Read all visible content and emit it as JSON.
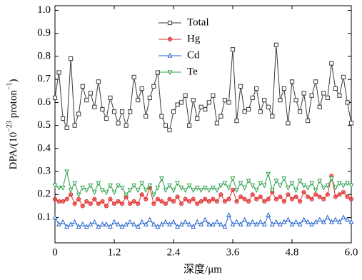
{
  "chart_data": {
    "type": "line",
    "xlabel": "深度/μm",
    "ylabel_parts": [
      "DPA/(10",
      "−23",
      " proton",
      "−1",
      ")"
    ],
    "x": [
      0,
      0.08,
      0.16,
      0.24,
      0.32,
      0.4,
      0.48,
      0.56,
      0.64,
      0.72,
      0.8,
      0.88,
      0.96,
      1.04,
      1.12,
      1.2,
      1.28,
      1.36,
      1.44,
      1.52,
      1.6,
      1.68,
      1.76,
      1.84,
      1.92,
      2,
      2.08,
      2.16,
      2.24,
      2.32,
      2.4,
      2.48,
      2.56,
      2.64,
      2.72,
      2.8,
      2.88,
      2.96,
      3.04,
      3.12,
      3.2,
      3.28,
      3.36,
      3.44,
      3.52,
      3.6,
      3.68,
      3.76,
      3.84,
      3.92,
      4,
      4.08,
      4.16,
      4.24,
      4.32,
      4.4,
      4.48,
      4.56,
      4.64,
      4.72,
      4.8,
      4.88,
      4.96,
      5.04,
      5.12,
      5.2,
      5.28,
      5.36,
      5.44,
      5.52,
      5.6,
      5.68,
      5.76,
      5.84,
      5.92,
      6
    ],
    "series": [
      {
        "name": "Total",
        "color": "#3a3a3a",
        "marker": "square",
        "values": [
          0.62,
          0.73,
          0.53,
          0.49,
          0.79,
          0.5,
          0.55,
          0.67,
          0.61,
          0.64,
          0.58,
          0.69,
          0.57,
          0.53,
          0.62,
          0.56,
          0.51,
          0.56,
          0.5,
          0.56,
          0.71,
          0.61,
          0.66,
          0.54,
          0.62,
          0.67,
          0.73,
          0.54,
          0.5,
          0.48,
          0.56,
          0.59,
          0.6,
          0.63,
          0.5,
          0.61,
          0.53,
          0.58,
          0.57,
          0.6,
          0.63,
          0.51,
          0.54,
          0.61,
          0.6,
          0.83,
          0.52,
          0.67,
          0.56,
          0.57,
          0.62,
          0.66,
          0.56,
          0.61,
          0.58,
          0.54,
          0.85,
          0.61,
          0.66,
          0.51,
          0.69,
          0.61,
          0.56,
          0.64,
          0.52,
          0.63,
          0.69,
          0.58,
          0.64,
          0.62,
          0.77,
          0.66,
          0.63,
          0.71,
          0.6,
          0.51
        ]
      },
      {
        "name": "Hg",
        "color": "#e03030",
        "marker": "circle",
        "values": [
          0.18,
          0.17,
          0.17,
          0.18,
          0.2,
          0.16,
          0.18,
          0.15,
          0.17,
          0.16,
          0.18,
          0.16,
          0.17,
          0.15,
          0.18,
          0.16,
          0.17,
          0.16,
          0.19,
          0.16,
          0.17,
          0.16,
          0.2,
          0.18,
          0.23,
          0.16,
          0.18,
          0.17,
          0.16,
          0.18,
          0.17,
          0.19,
          0.16,
          0.18,
          0.17,
          0.18,
          0.16,
          0.17,
          0.18,
          0.17,
          0.18,
          0.17,
          0.2,
          0.17,
          0.18,
          0.22,
          0.17,
          0.19,
          0.18,
          0.17,
          0.2,
          0.18,
          0.19,
          0.17,
          0.18,
          0.21,
          0.18,
          0.19,
          0.17,
          0.2,
          0.18,
          0.19,
          0.17,
          0.21,
          0.19,
          0.18,
          0.2,
          0.19,
          0.18,
          0.2,
          0.28,
          0.19,
          0.2,
          0.21,
          0.19,
          0.18
        ]
      },
      {
        "name": "Cd",
        "color": "#1f5fd0",
        "marker": "triangle",
        "values": [
          0.1,
          0.07,
          0.08,
          0.06,
          0.07,
          0.08,
          0.06,
          0.07,
          0.06,
          0.07,
          0.08,
          0.06,
          0.07,
          0.07,
          0.06,
          0.08,
          0.07,
          0.06,
          0.07,
          0.08,
          0.07,
          0.06,
          0.08,
          0.07,
          0.09,
          0.07,
          0.06,
          0.07,
          0.08,
          0.07,
          0.08,
          0.06,
          0.07,
          0.08,
          0.07,
          0.06,
          0.08,
          0.07,
          0.09,
          0.07,
          0.07,
          0.08,
          0.07,
          0.06,
          0.11,
          0.07,
          0.08,
          0.07,
          0.09,
          0.07,
          0.08,
          0.07,
          0.08,
          0.07,
          0.11,
          0.07,
          0.08,
          0.07,
          0.08,
          0.09,
          0.07,
          0.08,
          0.07,
          0.09,
          0.08,
          0.07,
          0.08,
          0.09,
          0.08,
          0.1,
          0.08,
          0.09,
          0.08,
          0.1,
          0.09,
          0.08
        ]
      },
      {
        "name": "Te",
        "color": "#2aa04a",
        "marker": "triangle-down",
        "values": [
          0.24,
          0.23,
          0.23,
          0.3,
          0.22,
          0.25,
          0.2,
          0.23,
          0.22,
          0.24,
          0.21,
          0.25,
          0.22,
          0.21,
          0.24,
          0.21,
          0.24,
          0.23,
          0.2,
          0.22,
          0.24,
          0.22,
          0.25,
          0.22,
          0.24,
          0.2,
          0.23,
          0.27,
          0.22,
          0.24,
          0.22,
          0.25,
          0.23,
          0.22,
          0.24,
          0.22,
          0.23,
          0.22,
          0.23,
          0.22,
          0.23,
          0.22,
          0.24,
          0.25,
          0.23,
          0.27,
          0.22,
          0.25,
          0.23,
          0.26,
          0.24,
          0.22,
          0.25,
          0.24,
          0.29,
          0.22,
          0.26,
          0.24,
          0.27,
          0.23,
          0.25,
          0.22,
          0.26,
          0.24,
          0.23,
          0.25,
          0.22,
          0.26,
          0.23,
          0.24,
          0.27,
          0.23,
          0.25,
          0.24,
          0.25,
          0.24
        ]
      }
    ],
    "xlim": [
      0,
      6
    ],
    "xticks": [
      0,
      1.2,
      2.4,
      3.6,
      4.8,
      {
        "value": 6,
        "label": "6.0"
      }
    ],
    "ylim": [
      -0.01,
      1.02
    ],
    "yticks": [
      0.1,
      0.2,
      0.3,
      0.4,
      0.5,
      0.6,
      0.7,
      0.8,
      0.9,
      {
        "value": 1,
        "label": "1.0"
      }
    ],
    "legend": "upper center",
    "grid": false
  }
}
